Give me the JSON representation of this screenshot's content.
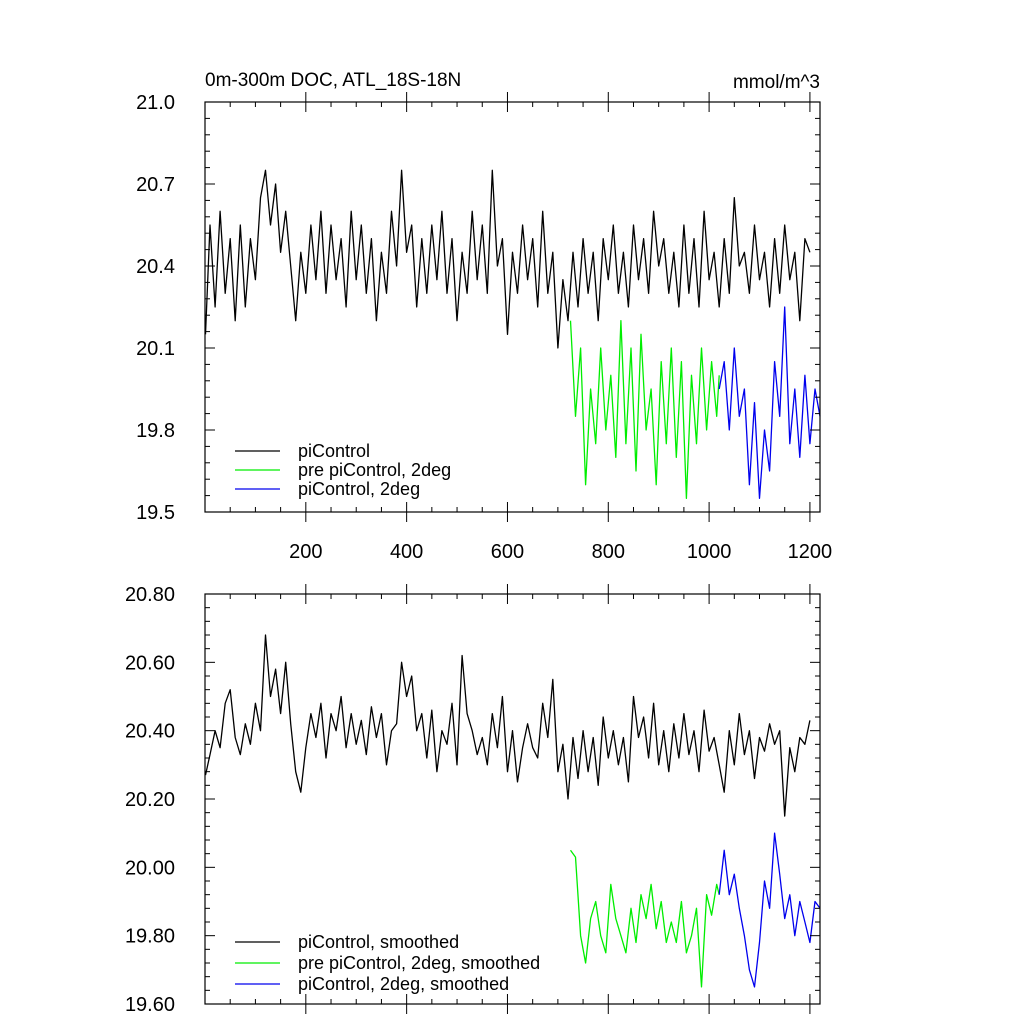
{
  "chart_data": [
    {
      "type": "line",
      "title": "0m-300m DOC, ATL_18S-18N",
      "units_label": "mmol/m^3",
      "xlim": [
        0,
        1220
      ],
      "ylim": [
        19.5,
        21.0
      ],
      "x_ticks": [
        200,
        400,
        600,
        800,
        1000,
        1200
      ],
      "x_tick_labels": [
        "200",
        "400",
        "600",
        "800",
        "1000",
        "1200"
      ],
      "y_ticks": [
        19.5,
        19.8,
        20.1,
        20.4,
        20.7,
        21.0
      ],
      "y_tick_labels": [
        "19.5",
        "19.8",
        "20.1",
        "20.4",
        "20.7",
        "21.0"
      ],
      "legend_position": "bottom-left",
      "series": [
        {
          "name": "piControl",
          "color": "#000000",
          "x": [
            1,
            10,
            20,
            30,
            40,
            50,
            60,
            70,
            80,
            90,
            100,
            110,
            120,
            130,
            140,
            150,
            160,
            170,
            180,
            190,
            200,
            210,
            220,
            230,
            240,
            250,
            260,
            270,
            280,
            290,
            300,
            310,
            320,
            330,
            340,
            350,
            360,
            370,
            380,
            390,
            400,
            410,
            420,
            430,
            440,
            450,
            460,
            470,
            480,
            490,
            500,
            510,
            520,
            530,
            540,
            550,
            560,
            570,
            580,
            590,
            600,
            610,
            620,
            630,
            640,
            650,
            660,
            670,
            680,
            690,
            700,
            710,
            720,
            730,
            740,
            750,
            760,
            770,
            780,
            790,
            800,
            810,
            820,
            830,
            840,
            850,
            860,
            870,
            880,
            890,
            900,
            910,
            920,
            930,
            940,
            950,
            960,
            970,
            980,
            990,
            1000,
            1010,
            1020,
            1030,
            1040,
            1050,
            1060,
            1070,
            1080,
            1090,
            1100,
            1110,
            1120,
            1130,
            1140,
            1150,
            1160,
            1170,
            1180,
            1190,
            1200
          ],
          "y": [
            20.15,
            20.55,
            20.25,
            20.6,
            20.3,
            20.5,
            20.2,
            20.55,
            20.25,
            20.5,
            20.35,
            20.65,
            20.75,
            20.55,
            20.7,
            20.45,
            20.6,
            20.4,
            20.2,
            20.45,
            20.3,
            20.55,
            20.35,
            20.6,
            20.3,
            20.55,
            20.35,
            20.5,
            20.25,
            20.6,
            20.35,
            20.55,
            20.3,
            20.5,
            20.2,
            20.45,
            20.3,
            20.6,
            20.4,
            20.75,
            20.45,
            20.55,
            20.25,
            20.5,
            20.3,
            20.55,
            20.35,
            20.6,
            20.3,
            20.5,
            20.2,
            20.45,
            20.3,
            20.6,
            20.35,
            20.55,
            20.3,
            20.75,
            20.4,
            20.5,
            20.15,
            20.45,
            20.3,
            20.55,
            20.35,
            20.5,
            20.25,
            20.6,
            20.3,
            20.45,
            20.1,
            20.35,
            20.2,
            20.45,
            20.25,
            20.5,
            20.3,
            20.45,
            20.2,
            20.5,
            20.35,
            20.55,
            20.3,
            20.45,
            20.25,
            20.55,
            20.35,
            20.5,
            20.3,
            20.6,
            20.4,
            20.5,
            20.3,
            20.45,
            20.25,
            20.55,
            20.3,
            20.5,
            20.25,
            20.6,
            20.35,
            20.45,
            20.25,
            20.5,
            20.3,
            20.65,
            20.4,
            20.45,
            20.3,
            20.55,
            20.35,
            20.45,
            20.25,
            20.5,
            20.3,
            20.55,
            20.35,
            20.45,
            20.2,
            20.5,
            20.45
          ]
        },
        {
          "name": "pre piControl, 2deg",
          "color": "#00ee00",
          "x": [
            725,
            735,
            745,
            755,
            765,
            775,
            785,
            795,
            805,
            815,
            825,
            835,
            845,
            855,
            865,
            875,
            885,
            895,
            905,
            915,
            925,
            935,
            945,
            955,
            965,
            975,
            985,
            995,
            1005,
            1015,
            1020
          ],
          "y": [
            20.2,
            19.85,
            20.1,
            19.6,
            19.95,
            19.75,
            20.1,
            19.8,
            20.0,
            19.7,
            20.2,
            19.75,
            20.1,
            19.65,
            20.15,
            19.8,
            19.95,
            19.6,
            20.05,
            19.75,
            20.1,
            19.7,
            20.05,
            19.55,
            20.0,
            19.75,
            20.1,
            19.8,
            20.05,
            19.85,
            20.0
          ]
        },
        {
          "name": "piControl, 2deg",
          "color": "#0000ee",
          "x": [
            1020,
            1030,
            1040,
            1050,
            1060,
            1070,
            1080,
            1090,
            1100,
            1110,
            1120,
            1130,
            1140,
            1150,
            1160,
            1170,
            1180,
            1190,
            1200,
            1210,
            1220
          ],
          "y": [
            19.95,
            20.05,
            19.8,
            20.1,
            19.85,
            19.95,
            19.6,
            19.9,
            19.55,
            19.8,
            19.65,
            20.05,
            19.85,
            20.25,
            19.75,
            19.95,
            19.7,
            20.0,
            19.75,
            19.95,
            19.85
          ]
        }
      ]
    },
    {
      "type": "line",
      "xlim": [
        0,
        1220
      ],
      "ylim": [
        19.6,
        20.8
      ],
      "x_ticks": [
        200,
        400,
        600,
        800,
        1000,
        1200
      ],
      "y_ticks": [
        19.6,
        19.8,
        20.0,
        20.2,
        20.4,
        20.6,
        20.8
      ],
      "y_tick_labels": [
        "19.60",
        "19.80",
        "20.00",
        "20.20",
        "20.40",
        "20.60",
        "20.80"
      ],
      "legend_position": "bottom-left",
      "series": [
        {
          "name": "piControl, smoothed",
          "color": "#000000",
          "x": [
            1,
            10,
            20,
            30,
            40,
            50,
            60,
            70,
            80,
            90,
            100,
            110,
            120,
            130,
            140,
            150,
            160,
            170,
            180,
            190,
            200,
            210,
            220,
            230,
            240,
            250,
            260,
            270,
            280,
            290,
            300,
            310,
            320,
            330,
            340,
            350,
            360,
            370,
            380,
            390,
            400,
            410,
            420,
            430,
            440,
            450,
            460,
            470,
            480,
            490,
            500,
            510,
            520,
            530,
            540,
            550,
            560,
            570,
            580,
            590,
            600,
            610,
            620,
            630,
            640,
            650,
            660,
            670,
            680,
            690,
            700,
            710,
            720,
            730,
            740,
            750,
            760,
            770,
            780,
            790,
            800,
            810,
            820,
            830,
            840,
            850,
            860,
            870,
            880,
            890,
            900,
            910,
            920,
            930,
            940,
            950,
            960,
            970,
            980,
            990,
            1000,
            1010,
            1020,
            1030,
            1040,
            1050,
            1060,
            1070,
            1080,
            1090,
            1100,
            1110,
            1120,
            1130,
            1140,
            1150,
            1160,
            1170,
            1180,
            1190,
            1200
          ],
          "y": [
            20.27,
            20.33,
            20.4,
            20.35,
            20.48,
            20.52,
            20.38,
            20.33,
            20.42,
            20.36,
            20.48,
            20.4,
            20.68,
            20.5,
            20.58,
            20.45,
            20.6,
            20.42,
            20.28,
            20.22,
            20.35,
            20.45,
            20.38,
            20.48,
            20.32,
            20.45,
            20.4,
            20.5,
            20.35,
            20.45,
            20.36,
            20.43,
            20.33,
            20.47,
            20.38,
            20.45,
            20.3,
            20.4,
            20.42,
            20.6,
            20.5,
            20.56,
            20.4,
            20.45,
            20.32,
            20.46,
            20.28,
            20.4,
            20.36,
            20.48,
            20.3,
            20.62,
            20.45,
            20.4,
            20.33,
            20.38,
            20.3,
            20.45,
            20.35,
            20.5,
            20.28,
            20.4,
            20.25,
            20.35,
            20.42,
            20.35,
            20.32,
            20.48,
            20.38,
            20.55,
            20.28,
            20.36,
            20.2,
            20.38,
            20.26,
            20.4,
            20.28,
            20.38,
            20.24,
            20.44,
            20.32,
            20.4,
            20.3,
            20.38,
            20.25,
            20.5,
            20.38,
            20.44,
            20.32,
            20.48,
            20.3,
            20.4,
            20.28,
            20.42,
            20.32,
            20.45,
            20.33,
            20.4,
            20.28,
            20.46,
            20.34,
            20.38,
            20.3,
            20.22,
            20.4,
            20.3,
            20.45,
            20.33,
            20.4,
            20.26,
            20.38,
            20.34,
            20.42,
            20.36,
            20.4,
            20.15,
            20.35,
            20.28,
            20.38,
            20.36,
            20.43
          ]
        },
        {
          "name": "pre piControl, 2deg, smoothed",
          "color": "#00ee00",
          "x": [
            725,
            735,
            745,
            755,
            765,
            775,
            785,
            795,
            805,
            815,
            825,
            835,
            845,
            855,
            865,
            875,
            885,
            895,
            905,
            915,
            925,
            935,
            945,
            955,
            965,
            975,
            985,
            995,
            1005,
            1015,
            1020
          ],
          "y": [
            20.05,
            20.03,
            19.8,
            19.72,
            19.85,
            19.9,
            19.8,
            19.75,
            19.95,
            19.85,
            19.8,
            19.75,
            19.88,
            19.78,
            19.92,
            19.85,
            19.95,
            19.82,
            19.9,
            19.78,
            19.84,
            19.78,
            19.9,
            19.75,
            19.8,
            19.88,
            19.65,
            19.92,
            19.86,
            19.95,
            19.92
          ]
        },
        {
          "name": "piControl, 2deg, smoothed",
          "color": "#0000ee",
          "x": [
            1020,
            1030,
            1040,
            1050,
            1060,
            1070,
            1080,
            1090,
            1100,
            1110,
            1120,
            1130,
            1140,
            1150,
            1160,
            1170,
            1180,
            1190,
            1200,
            1210,
            1220
          ],
          "y": [
            19.92,
            20.05,
            19.92,
            19.98,
            19.88,
            19.8,
            19.7,
            19.65,
            19.78,
            19.96,
            19.88,
            20.1,
            19.98,
            19.85,
            19.92,
            19.8,
            19.9,
            19.84,
            19.78,
            19.9,
            19.88
          ]
        }
      ]
    }
  ]
}
